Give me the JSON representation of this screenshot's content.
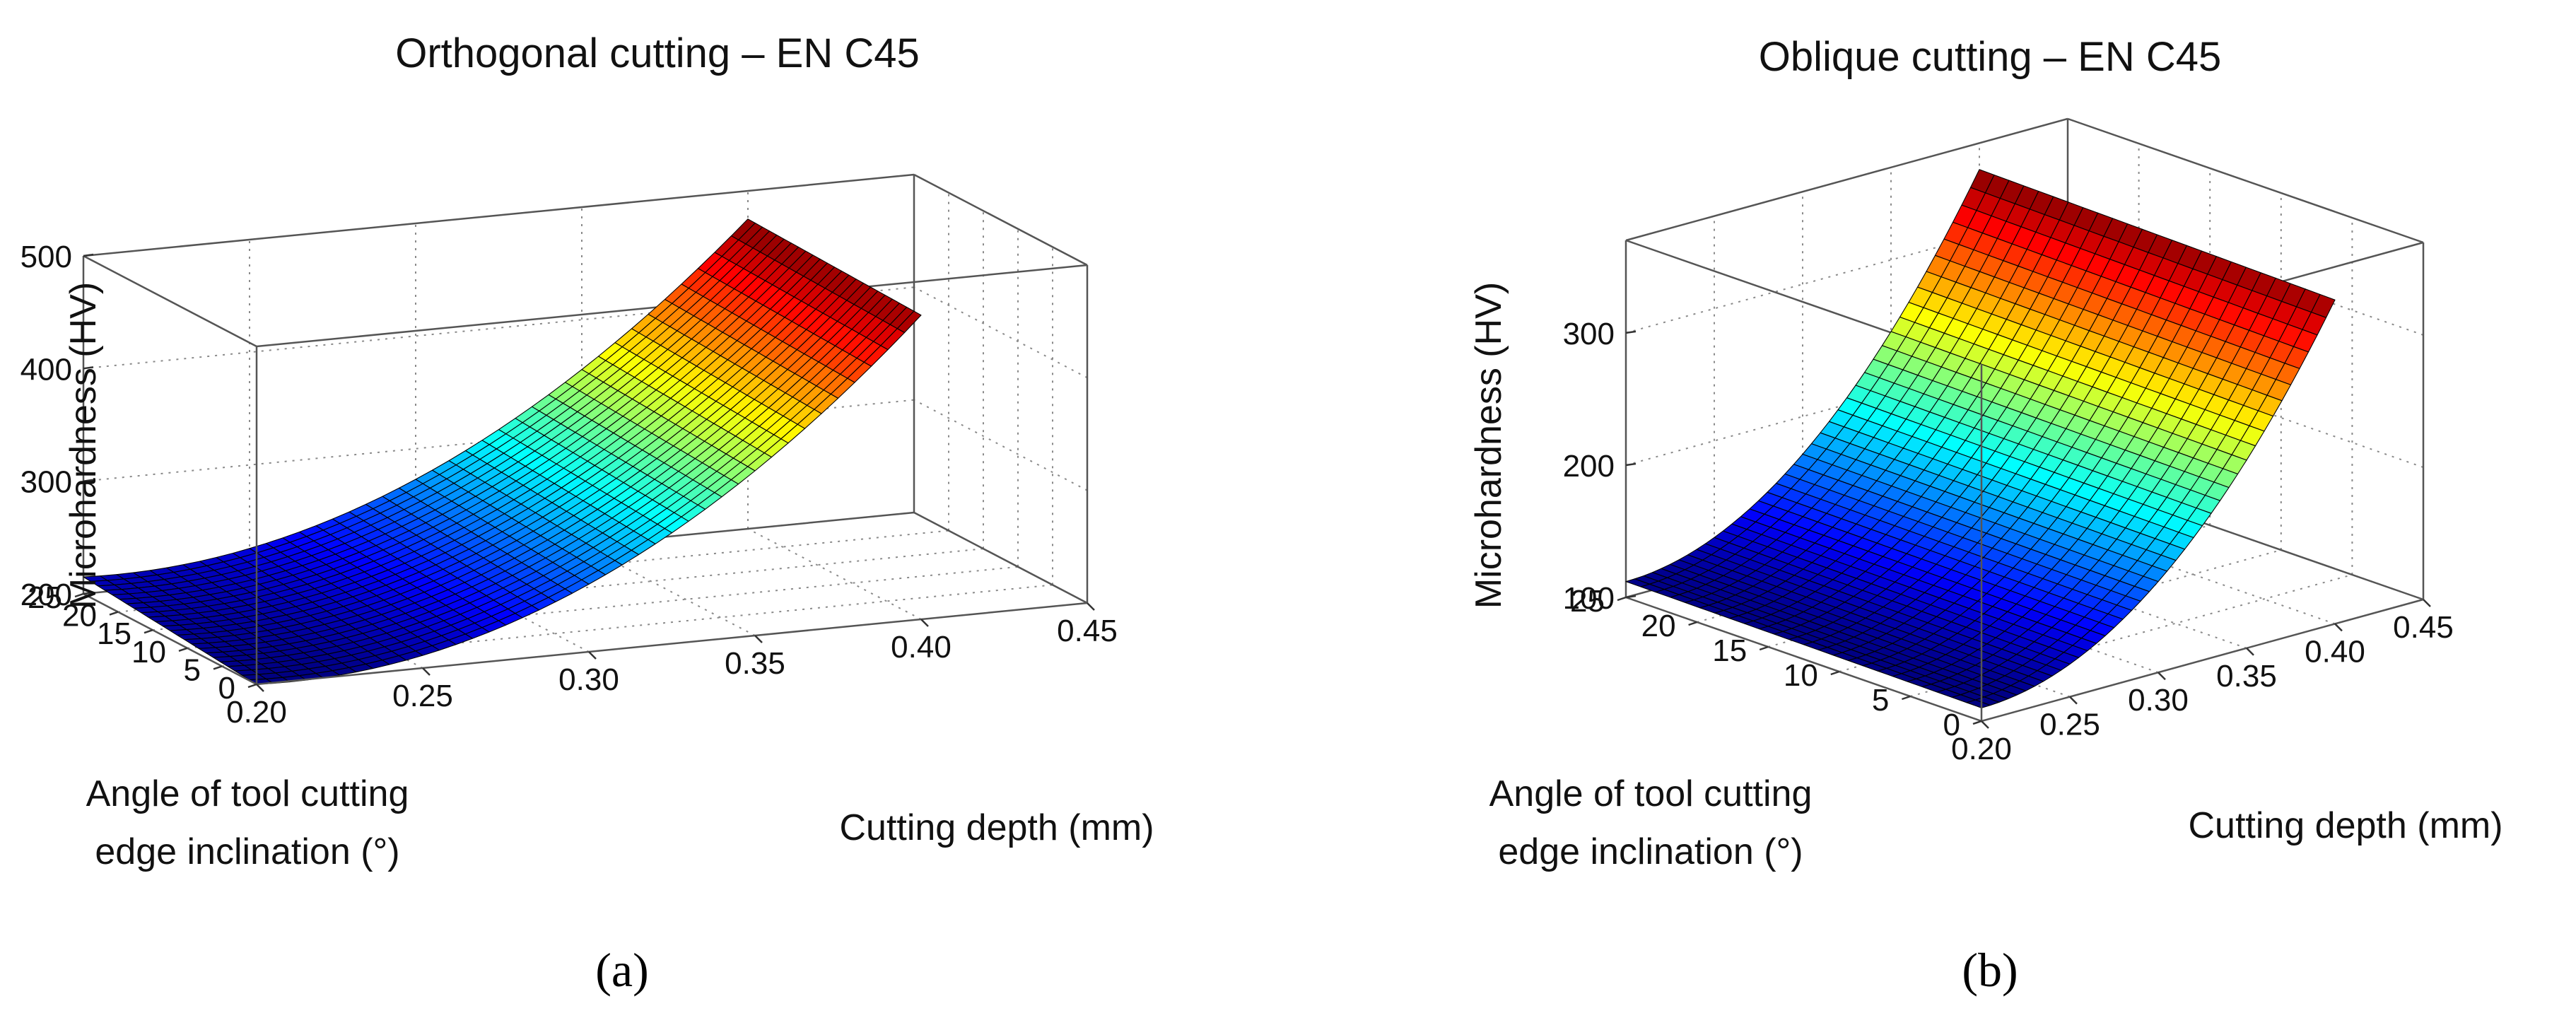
{
  "chart_data": [
    {
      "type": "surface",
      "panel_label": "(a)",
      "title": "Orthogonal cutting – EN C45",
      "xlabel": "Cutting depth (mm)",
      "ylabel": "Angle of tool cutting edge inclination (°)",
      "ylabel_lines": [
        "Angle of tool cutting",
        "edge inclination (°)"
      ],
      "zlabel": "Microhardness (HV)",
      "xlim": [
        0.2,
        0.45
      ],
      "ylim": [
        0,
        25
      ],
      "zlim": [
        200,
        500
      ],
      "xticks": [
        "0.20",
        "0.25",
        "0.30",
        "0.35",
        "0.40",
        "0.45"
      ],
      "yticks": [
        "0",
        "5",
        "10",
        "15",
        "20",
        "25"
      ],
      "zticks": [
        "200",
        "300",
        "400",
        "500"
      ],
      "surface": {
        "form": "z = a + b*(x - x0)^2 + c*y",
        "x0": 0.21,
        "x_range": [
          0.2,
          0.4
        ],
        "y_range": [
          0,
          25
        ],
        "z_at_corners": {
          "x0.20_y0": 200,
          "x0.20_y25": 215,
          "x0.40_y0": 470,
          "x0.40_y25": 475
        },
        "colormap": "jet",
        "grid_resolution": [
          40,
          24
        ]
      }
    },
    {
      "type": "surface",
      "panel_label": "(b)",
      "title": "Oblique cutting – EN C45",
      "xlabel": "Cutting depth (mm)",
      "ylabel": "Angle of tool cutting edge inclination (°)",
      "ylabel_lines": [
        "Angle of tool cutting",
        "edge inclination (°)"
      ],
      "zlabel": "Microhardness (HV)",
      "xlim": [
        0.2,
        0.45
      ],
      "ylim": [
        0,
        25
      ],
      "zlim": [
        100,
        370
      ],
      "xticks": [
        "0.20",
        "0.25",
        "0.30",
        "0.35",
        "0.40",
        "0.45"
      ],
      "yticks": [
        "0",
        "5",
        "10",
        "15",
        "20",
        "25"
      ],
      "zticks": [
        "100",
        "200",
        "300"
      ],
      "surface": {
        "form": "z = a + b*(x - x0)^2 + c*y",
        "x0": 0.2,
        "x_range": [
          0.2,
          0.4
        ],
        "y_range": [
          0,
          25
        ],
        "z_at_corners": {
          "x0.20_y0": 110,
          "x0.20_y25": 112,
          "x0.40_y0": 345,
          "x0.40_y25": 350
        },
        "colormap": "jet",
        "grid_resolution": [
          40,
          24
        ]
      }
    }
  ]
}
